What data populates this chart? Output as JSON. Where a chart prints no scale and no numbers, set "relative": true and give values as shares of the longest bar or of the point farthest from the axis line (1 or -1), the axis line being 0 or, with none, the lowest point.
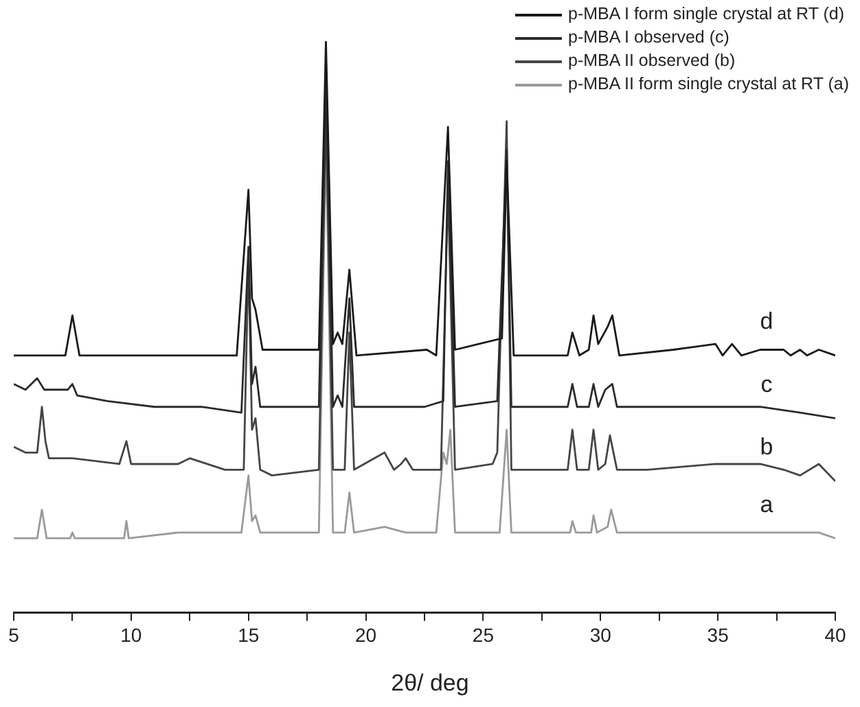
{
  "chart_data": {
    "type": "line",
    "relative": true,
    "xlabel": "2θ/ deg",
    "xlim": [
      5,
      40
    ],
    "xticks": [
      5,
      {
        "value": 7.5,
        "label": null
      },
      10,
      {
        "value": 12.5,
        "label": null
      },
      15,
      {
        "value": 17.5,
        "label": null
      },
      20,
      {
        "value": 22.5,
        "label": null
      },
      25,
      {
        "value": 27.5,
        "label": null
      },
      30,
      {
        "value": 32.5,
        "label": null
      },
      35,
      {
        "value": 37.5,
        "label": null
      },
      40
    ],
    "grid": false,
    "legend": "top right",
    "series": [
      {
        "name": "p-MBA I form single crystal at RT (d)",
        "color": "#1a1a1a",
        "x": [
          5,
          7.2,
          7.5,
          7.8,
          14.5,
          15.0,
          15.15,
          15.3,
          15.6,
          18.0,
          18.3,
          18.6,
          18.8,
          19.0,
          19.3,
          19.6,
          22.6,
          23.0,
          23.5,
          23.8,
          25.8,
          26.0,
          26.3,
          28.6,
          28.8,
          29.1,
          29.5,
          29.7,
          29.9,
          30.3,
          30.5,
          30.8,
          33.1,
          34.9,
          35.2,
          35.6,
          36.0,
          36.8,
          37.8,
          38.1,
          38.5,
          38.8,
          39.3,
          40
        ],
        "values": [
          0.45,
          0.45,
          0.52,
          0.45,
          0.45,
          0.74,
          0.55,
          0.53,
          0.46,
          0.46,
          1.0,
          0.47,
          0.49,
          0.47,
          0.6,
          0.45,
          0.46,
          0.45,
          0.85,
          0.46,
          0.48,
          0.79,
          0.45,
          0.45,
          0.49,
          0.45,
          0.46,
          0.52,
          0.47,
          0.5,
          0.52,
          0.45,
          0.46,
          0.47,
          0.45,
          0.47,
          0.45,
          0.46,
          0.46,
          0.45,
          0.46,
          0.45,
          0.46,
          0.45
        ]
      },
      {
        "name": "p-MBA I observed (c)",
        "color": "#2b2b2b",
        "x": [
          5,
          5.5,
          6.0,
          6.3,
          7.3,
          7.5,
          7.7,
          9,
          11,
          13,
          14.7,
          15.0,
          15.15,
          15.3,
          15.5,
          18.0,
          18.3,
          18.6,
          18.8,
          19.0,
          19.3,
          19.5,
          22.5,
          23.3,
          23.5,
          23.8,
          25.6,
          26.0,
          26.2,
          28.6,
          28.8,
          29.0,
          29.5,
          29.7,
          29.9,
          30.2,
          30.5,
          30.7,
          34.9,
          35.5,
          36.8,
          38.5,
          40
        ],
        "values": [
          0.4,
          0.39,
          0.41,
          0.39,
          0.39,
          0.4,
          0.38,
          0.37,
          0.36,
          0.36,
          0.35,
          0.64,
          0.4,
          0.43,
          0.36,
          0.36,
          0.93,
          0.36,
          0.38,
          0.36,
          0.55,
          0.36,
          0.36,
          0.37,
          0.79,
          0.36,
          0.37,
          0.81,
          0.36,
          0.36,
          0.4,
          0.36,
          0.36,
          0.4,
          0.36,
          0.39,
          0.4,
          0.36,
          0.36,
          0.36,
          0.36,
          0.35,
          0.34
        ]
      },
      {
        "name": "p-MBA II observed (b)",
        "color": "#454545",
        "x": [
          5,
          5.5,
          6.0,
          6.2,
          6.35,
          6.5,
          7.5,
          9.5,
          9.8,
          10.0,
          12.0,
          12.5,
          14,
          14.8,
          15.0,
          15.15,
          15.3,
          15.5,
          16,
          18.0,
          18.3,
          18.6,
          19.1,
          19.3,
          19.5,
          20.8,
          21.2,
          21.5,
          21.7,
          22,
          23.2,
          23.5,
          23.8,
          25.4,
          25.6,
          26.0,
          26.2,
          28.6,
          28.8,
          29.0,
          29.5,
          29.7,
          29.9,
          30.2,
          30.4,
          30.7,
          32,
          34.9,
          35.5,
          36.8,
          37.8,
          38.5,
          39.3,
          40
        ],
        "values": [
          0.29,
          0.28,
          0.28,
          0.36,
          0.3,
          0.27,
          0.27,
          0.26,
          0.3,
          0.26,
          0.26,
          0.27,
          0.25,
          0.25,
          0.62,
          0.32,
          0.34,
          0.25,
          0.24,
          0.25,
          0.88,
          0.25,
          0.25,
          0.49,
          0.25,
          0.28,
          0.25,
          0.26,
          0.27,
          0.25,
          0.25,
          0.74,
          0.25,
          0.26,
          0.28,
          0.86,
          0.25,
          0.25,
          0.32,
          0.25,
          0.25,
          0.32,
          0.25,
          0.26,
          0.31,
          0.25,
          0.25,
          0.26,
          0.26,
          0.26,
          0.25,
          0.24,
          0.26,
          0.23
        ]
      },
      {
        "name": "p-MBA II form single crystal at RT (a)",
        "color": "#9a9a9a",
        "x": [
          5,
          6.0,
          6.2,
          6.4,
          7.4,
          7.5,
          7.6,
          9.7,
          9.8,
          9.9,
          12,
          14.7,
          15.0,
          15.15,
          15.3,
          15.5,
          18.0,
          18.3,
          18.6,
          19.1,
          19.3,
          19.5,
          20.8,
          21.7,
          23.0,
          23.3,
          23.45,
          23.6,
          23.8,
          25.7,
          26.0,
          26.2,
          28.7,
          28.8,
          28.95,
          29.6,
          29.7,
          29.85,
          30.3,
          30.45,
          30.7,
          34.9,
          35.5,
          37,
          38.5,
          39.3,
          40
        ],
        "values": [
          0.13,
          0.13,
          0.18,
          0.13,
          0.13,
          0.14,
          0.13,
          0.13,
          0.16,
          0.13,
          0.14,
          0.14,
          0.24,
          0.16,
          0.17,
          0.14,
          0.14,
          0.83,
          0.14,
          0.14,
          0.21,
          0.14,
          0.15,
          0.14,
          0.14,
          0.28,
          0.26,
          0.32,
          0.14,
          0.14,
          0.32,
          0.14,
          0.14,
          0.16,
          0.14,
          0.14,
          0.17,
          0.14,
          0.15,
          0.18,
          0.14,
          0.14,
          0.14,
          0.14,
          0.14,
          0.14,
          0.13
        ]
      }
    ],
    "annotations": [
      "d",
      "c",
      "b",
      "a"
    ]
  }
}
